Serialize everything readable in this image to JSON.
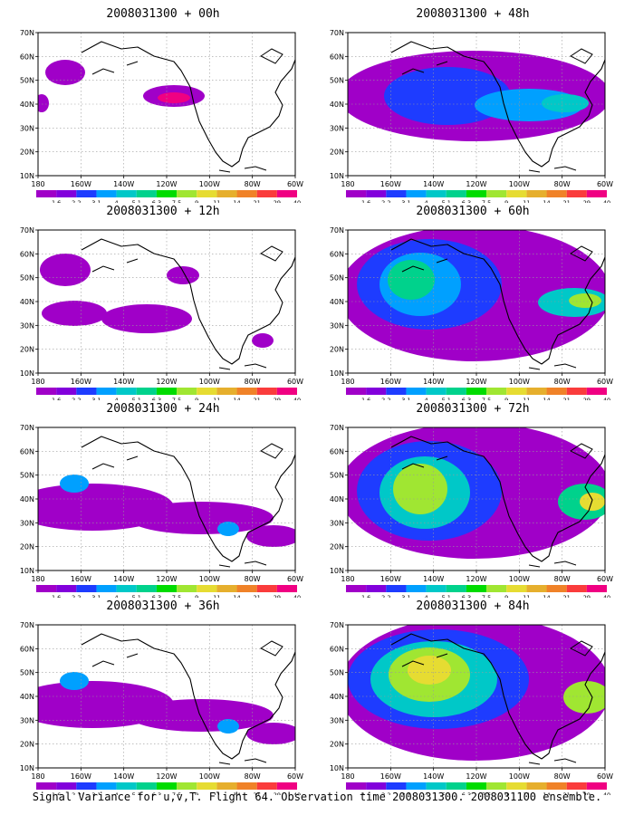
{
  "panels": [
    {
      "title": "2008031300 + 00h",
      "level": 0
    },
    {
      "title": "2008031300 + 48h",
      "level": 3
    },
    {
      "title": "2008031300 + 12h",
      "level": 1
    },
    {
      "title": "2008031300 + 60h",
      "level": 4
    },
    {
      "title": "2008031300 + 24h",
      "level": 2
    },
    {
      "title": "2008031300 + 72h",
      "level": 5
    },
    {
      "title": "2008031300 + 36h",
      "level": 2
    },
    {
      "title": "2008031300 + 84h",
      "level": 6
    }
  ],
  "axes": {
    "lat_labels": [
      "70N",
      "60N",
      "50N",
      "40N",
      "30N",
      "20N",
      "10N"
    ],
    "lon_labels": [
      "180",
      "160W",
      "140W",
      "120W",
      "100W",
      "80W",
      "60W"
    ]
  },
  "colorbar": {
    "labels": [
      "1.6",
      "2.2",
      "3.1",
      "4",
      "5.1",
      "6.3",
      "7.5",
      "9",
      "11",
      "14",
      "21",
      "29",
      "40"
    ],
    "colors": [
      "#a000c8",
      "#8200dc",
      "#1e3cff",
      "#00a0ff",
      "#00c8c8",
      "#00d28c",
      "#00dc00",
      "#a0e632",
      "#e6dc32",
      "#e6af2d",
      "#f08228",
      "#fa3c3c",
      "#f00082"
    ]
  },
  "footer": "Signal Variance for u,v,T. Flight 64. Observation time 2008031300. 2008031100 ensemble."
}
